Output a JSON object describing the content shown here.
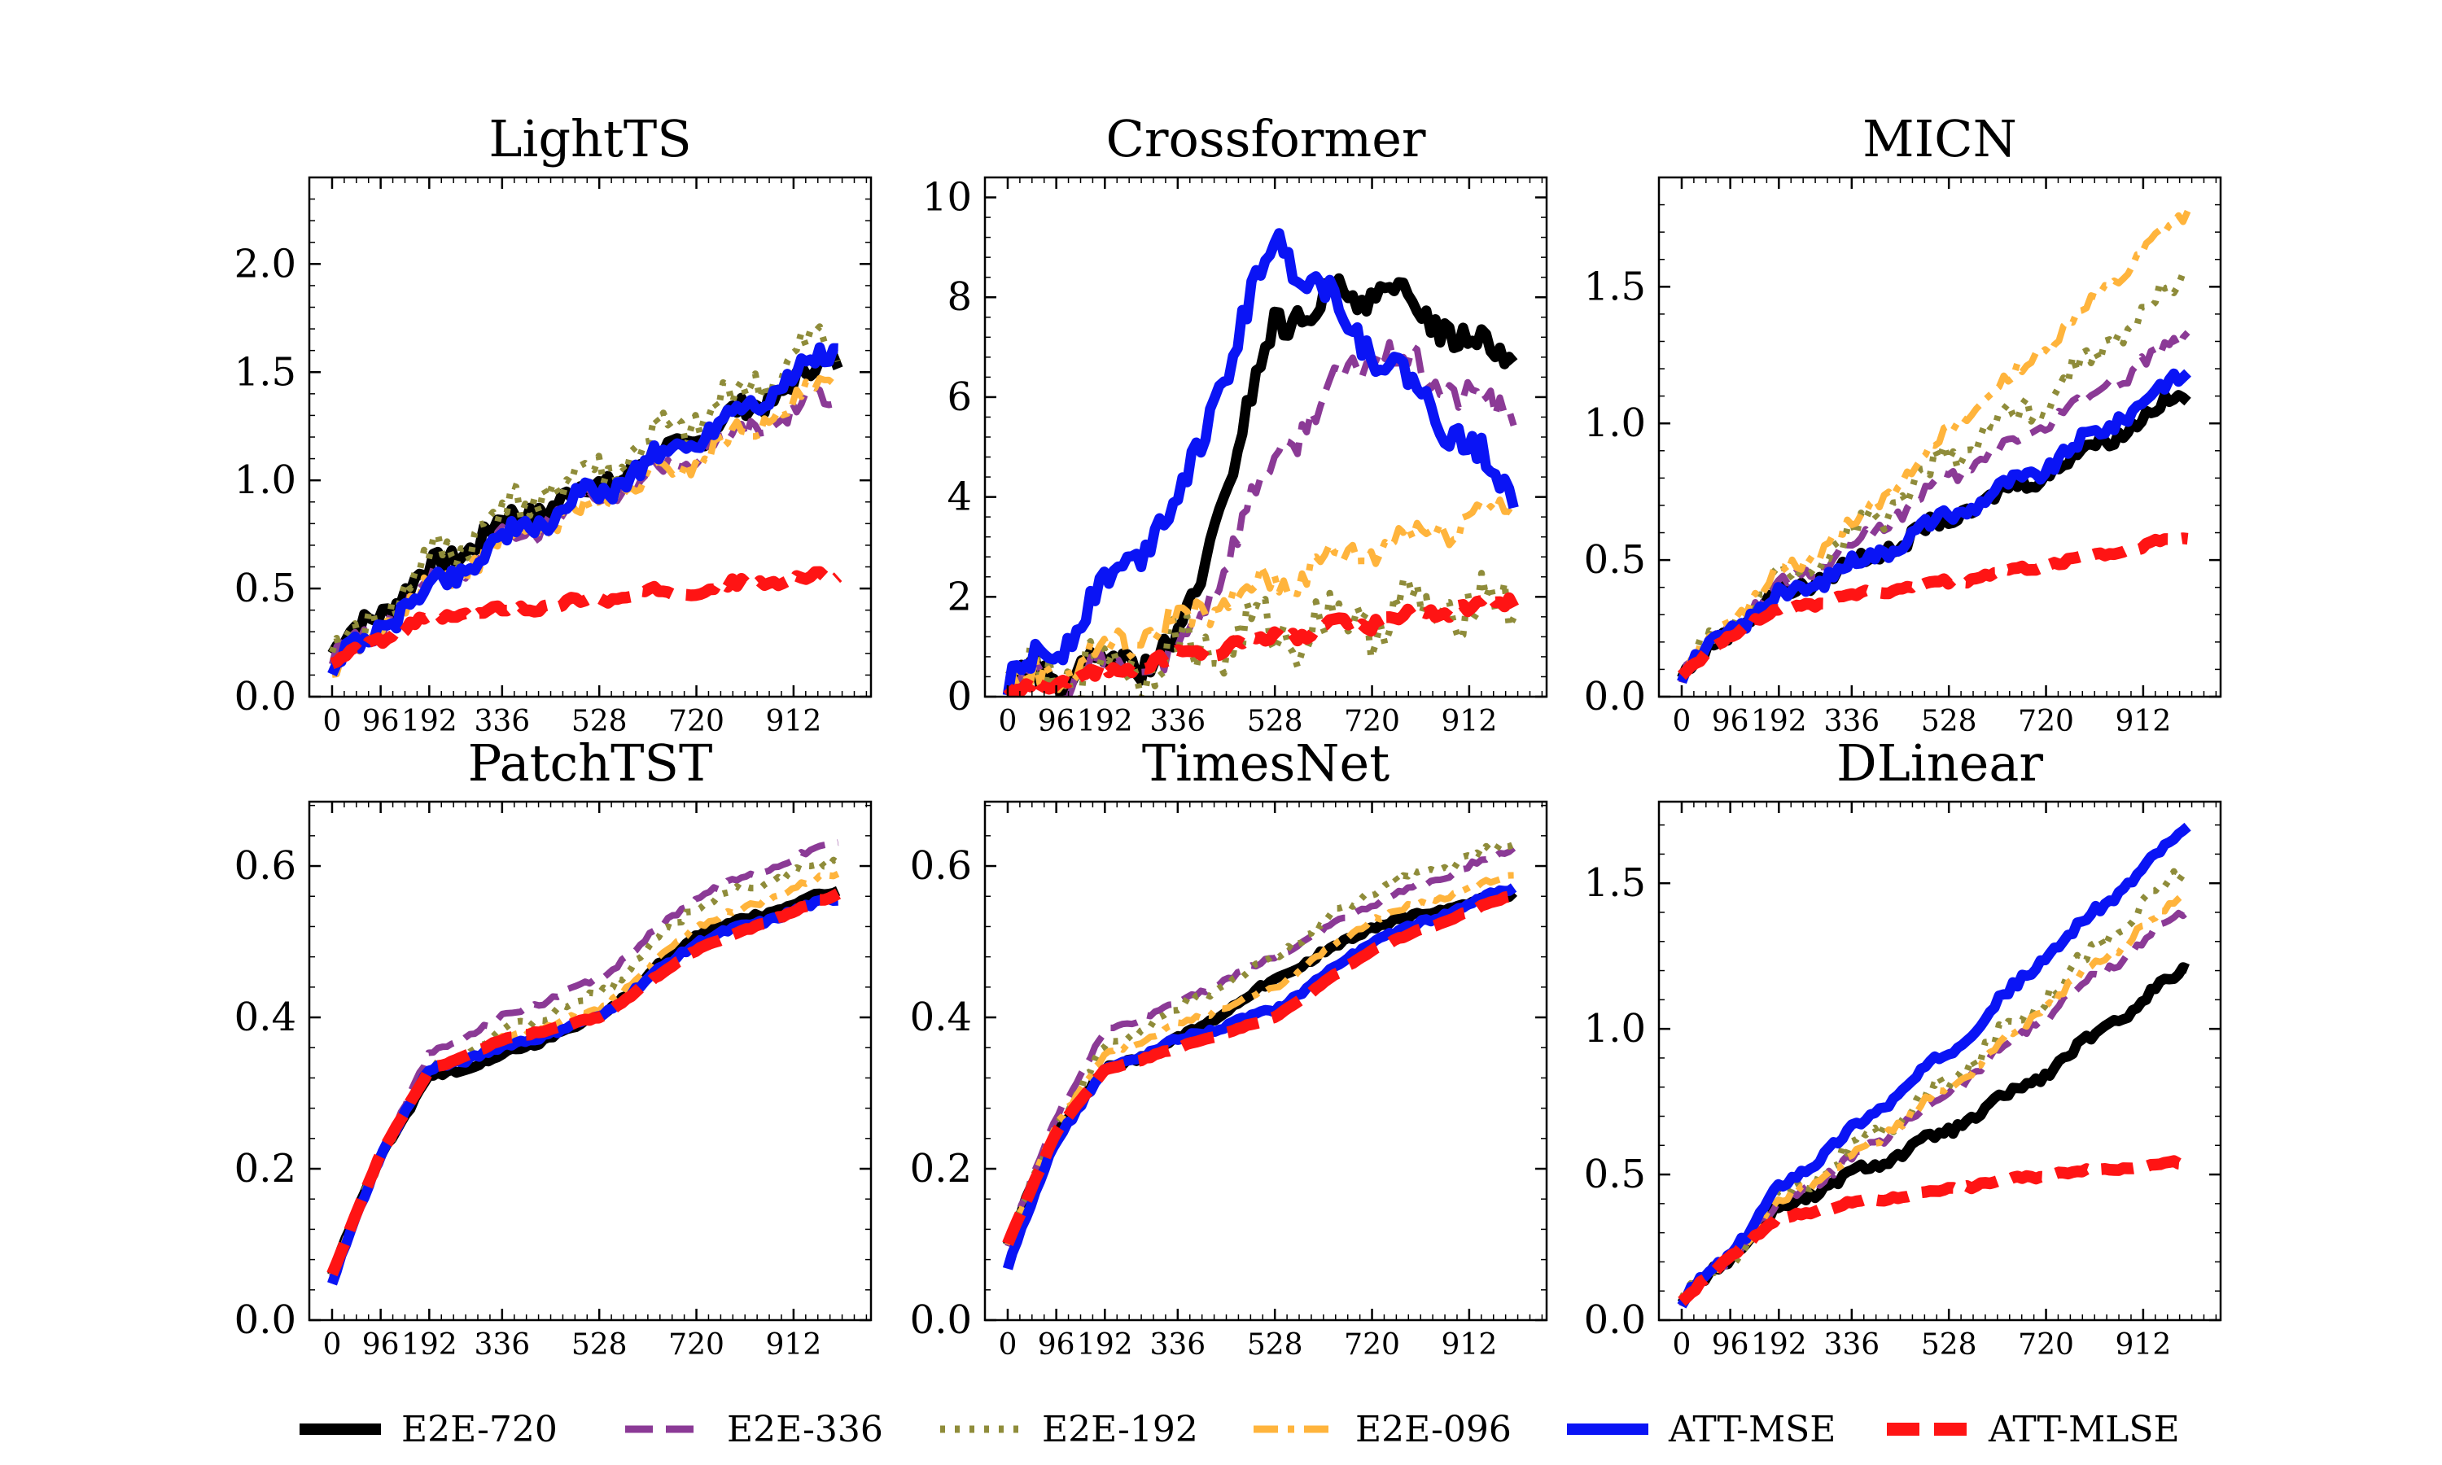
{
  "legend": [
    {
      "name": "E2E-720",
      "color": "#000000",
      "dash": "solid",
      "width": 14
    },
    {
      "name": "E2E-336",
      "color": "#8b3a96",
      "dash": "dashed",
      "width": 9
    },
    {
      "name": "E2E-192",
      "color": "#8f8c3a",
      "dash": "dotted",
      "width": 9
    },
    {
      "name": "E2E-096",
      "color": "#ffb43c",
      "dash": "dashdot",
      "width": 9
    },
    {
      "name": "ATT-MSE",
      "color": "#0a14f5",
      "dash": "solid",
      "width": 14
    },
    {
      "name": "ATT-MLSE",
      "color": "#ff1414",
      "dash": "heavydash",
      "width": 16
    }
  ],
  "chart_data": [
    {
      "type": "line",
      "title": "LightTS",
      "x": [
        0,
        96,
        192,
        336,
        528,
        720,
        912
      ],
      "xticks": [
        "0",
        "96",
        "192",
        "336",
        "528",
        "720",
        "912"
      ],
      "xlim": [
        -45,
        1065
      ],
      "ylim": [
        0,
        2.4
      ],
      "yticks": [
        "0.0",
        "0.5",
        "1.0",
        "1.5",
        "2.0"
      ],
      "ytick_values": [
        0,
        0.5,
        1.0,
        1.5,
        2.0
      ],
      "series": [
        {
          "name": "E2E-720",
          "values": [
            0.2,
            0.4,
            0.58,
            0.8,
            0.98,
            1.2,
            1.45
          ]
        },
        {
          "name": "E2E-336",
          "values": [
            0.18,
            0.35,
            0.52,
            0.72,
            0.92,
            1.12,
            1.32
          ]
        },
        {
          "name": "E2E-192",
          "values": [
            0.15,
            0.38,
            0.62,
            0.85,
            1.05,
            1.28,
            1.55
          ]
        },
        {
          "name": "E2E-096",
          "values": [
            0.1,
            0.32,
            0.5,
            0.7,
            0.9,
            1.1,
            1.35
          ]
        },
        {
          "name": "ATT-MSE",
          "values": [
            0.13,
            0.32,
            0.5,
            0.72,
            0.95,
            1.2,
            1.48
          ]
        },
        {
          "name": "ATT-MLSE",
          "values": [
            0.14,
            0.27,
            0.36,
            0.4,
            0.45,
            0.5,
            0.54
          ]
        }
      ]
    },
    {
      "type": "line",
      "title": "Crossformer",
      "x": [
        0,
        96,
        192,
        336,
        528,
        720,
        912
      ],
      "xticks": [
        "0",
        "96",
        "192",
        "336",
        "528",
        "720",
        "912"
      ],
      "xlim": [
        -45,
        1065
      ],
      "ylim": [
        0,
        10.4
      ],
      "yticks": [
        "0",
        "2",
        "4",
        "6",
        "8",
        "10"
      ],
      "ytick_values": [
        0,
        2,
        4,
        6,
        8,
        10
      ],
      "series": [
        {
          "name": "E2E-720",
          "values": [
            0.3,
            0.4,
            0.6,
            0.9,
            7.5,
            8.2,
            7.2
          ]
        },
        {
          "name": "E2E-336",
          "values": [
            0.25,
            0.35,
            0.5,
            0.8,
            4.8,
            7.0,
            6.0
          ]
        },
        {
          "name": "E2E-192",
          "values": [
            0.2,
            0.4,
            0.6,
            0.9,
            1.3,
            1.6,
            1.8
          ]
        },
        {
          "name": "E2E-096",
          "values": [
            0.2,
            0.5,
            0.9,
            1.5,
            2.3,
            3.0,
            3.6
          ]
        },
        {
          "name": "ATT-MSE",
          "values": [
            0.2,
            1.0,
            2.2,
            3.9,
            9.2,
            7.0,
            5.0
          ]
        },
        {
          "name": "ATT-MLSE",
          "values": [
            0.1,
            0.3,
            0.5,
            0.8,
            1.2,
            1.5,
            1.8
          ]
        }
      ]
    },
    {
      "type": "line",
      "title": "MICN",
      "x": [
        0,
        96,
        192,
        336,
        528,
        720,
        912
      ],
      "xticks": [
        "0",
        "96",
        "192",
        "336",
        "528",
        "720",
        "912"
      ],
      "xlim": [
        -45,
        1065
      ],
      "ylim": [
        0,
        1.9
      ],
      "yticks": [
        "0.0",
        "0.5",
        "1.0",
        "1.5"
      ],
      "ytick_values": [
        0,
        0.5,
        1.0,
        1.5
      ],
      "series": [
        {
          "name": "E2E-720",
          "values": [
            0.07,
            0.25,
            0.37,
            0.48,
            0.65,
            0.82,
            1.02
          ]
        },
        {
          "name": "E2E-336",
          "values": [
            0.07,
            0.26,
            0.4,
            0.55,
            0.8,
            1.0,
            1.22
          ]
        },
        {
          "name": "E2E-192",
          "values": [
            0.07,
            0.27,
            0.42,
            0.58,
            0.88,
            1.1,
            1.4
          ]
        },
        {
          "name": "E2E-096",
          "values": [
            0.07,
            0.28,
            0.44,
            0.62,
            0.97,
            1.28,
            1.62
          ]
        },
        {
          "name": "ATT-MSE",
          "values": [
            0.07,
            0.25,
            0.36,
            0.48,
            0.66,
            0.84,
            1.08
          ]
        },
        {
          "name": "ATT-MLSE",
          "values": [
            0.07,
            0.23,
            0.32,
            0.37,
            0.42,
            0.48,
            0.55
          ]
        }
      ]
    },
    {
      "type": "line",
      "title": "PatchTST",
      "x": [
        0,
        96,
        192,
        336,
        528,
        720,
        912
      ],
      "xticks": [
        "0",
        "96",
        "192",
        "336",
        "528",
        "720",
        "912"
      ],
      "xlim": [
        -45,
        1065
      ],
      "ylim": [
        0,
        0.685
      ],
      "yticks": [
        "0.0",
        "0.2",
        "0.4",
        "0.6"
      ],
      "ytick_values": [
        0,
        0.2,
        0.4,
        0.6
      ],
      "series": [
        {
          "name": "E2E-720",
          "values": [
            0.06,
            0.22,
            0.32,
            0.35,
            0.4,
            0.51,
            0.55
          ]
        },
        {
          "name": "E2E-336",
          "values": [
            0.06,
            0.22,
            0.35,
            0.4,
            0.45,
            0.56,
            0.61
          ]
        },
        {
          "name": "E2E-192",
          "values": [
            0.06,
            0.22,
            0.33,
            0.38,
            0.43,
            0.55,
            0.59
          ]
        },
        {
          "name": "E2E-096",
          "values": [
            0.06,
            0.22,
            0.33,
            0.37,
            0.41,
            0.52,
            0.57
          ]
        },
        {
          "name": "ATT-MSE",
          "values": [
            0.05,
            0.22,
            0.33,
            0.36,
            0.4,
            0.5,
            0.54
          ]
        },
        {
          "name": "ATT-MLSE",
          "values": [
            0.06,
            0.22,
            0.33,
            0.37,
            0.4,
            0.49,
            0.54
          ]
        }
      ]
    },
    {
      "type": "line",
      "title": "TimesNet",
      "x": [
        0,
        96,
        192,
        336,
        528,
        720,
        912
      ],
      "xticks": [
        "0",
        "96",
        "192",
        "336",
        "528",
        "720",
        "912"
      ],
      "xlim": [
        -45,
        1065
      ],
      "ylim": [
        0,
        0.685
      ],
      "yticks": [
        "0.0",
        "0.2",
        "0.4",
        "0.6"
      ],
      "ytick_values": [
        0,
        0.2,
        0.4,
        0.6
      ],
      "series": [
        {
          "name": "E2E-720",
          "values": [
            0.1,
            0.25,
            0.33,
            0.37,
            0.45,
            0.52,
            0.55
          ]
        },
        {
          "name": "E2E-336",
          "values": [
            0.1,
            0.27,
            0.38,
            0.42,
            0.48,
            0.55,
            0.6
          ]
        },
        {
          "name": "E2E-192",
          "values": [
            0.1,
            0.26,
            0.36,
            0.41,
            0.48,
            0.57,
            0.61
          ]
        },
        {
          "name": "E2E-096",
          "values": [
            0.1,
            0.26,
            0.35,
            0.39,
            0.44,
            0.53,
            0.57
          ]
        },
        {
          "name": "ATT-MSE",
          "values": [
            0.07,
            0.24,
            0.33,
            0.37,
            0.41,
            0.5,
            0.55
          ]
        },
        {
          "name": "ATT-MLSE",
          "values": [
            0.1,
            0.25,
            0.33,
            0.36,
            0.4,
            0.49,
            0.54
          ]
        }
      ]
    },
    {
      "type": "line",
      "title": "DLinear",
      "x": [
        0,
        96,
        192,
        336,
        528,
        720,
        912
      ],
      "xticks": [
        "0",
        "96",
        "192",
        "336",
        "528",
        "720",
        "912"
      ],
      "xlim": [
        -45,
        1065
      ],
      "ylim": [
        0,
        1.78
      ],
      "yticks": [
        "0.0",
        "0.5",
        "1.0",
        "1.5"
      ],
      "ytick_values": [
        0,
        0.5,
        1.0,
        1.5
      ],
      "series": [
        {
          "name": "E2E-720",
          "values": [
            0.06,
            0.22,
            0.38,
            0.5,
            0.65,
            0.85,
            1.1
          ]
        },
        {
          "name": "E2E-336",
          "values": [
            0.06,
            0.22,
            0.4,
            0.55,
            0.78,
            1.05,
            1.3
          ]
        },
        {
          "name": "E2E-192",
          "values": [
            0.06,
            0.22,
            0.42,
            0.58,
            0.82,
            1.12,
            1.42
          ]
        },
        {
          "name": "E2E-096",
          "values": [
            0.06,
            0.22,
            0.4,
            0.56,
            0.8,
            1.08,
            1.35
          ]
        },
        {
          "name": "ATT-MSE",
          "values": [
            0.06,
            0.23,
            0.45,
            0.65,
            0.92,
            1.25,
            1.55
          ]
        },
        {
          "name": "ATT-MLSE",
          "values": [
            0.06,
            0.22,
            0.35,
            0.4,
            0.45,
            0.5,
            0.53
          ]
        }
      ]
    }
  ]
}
